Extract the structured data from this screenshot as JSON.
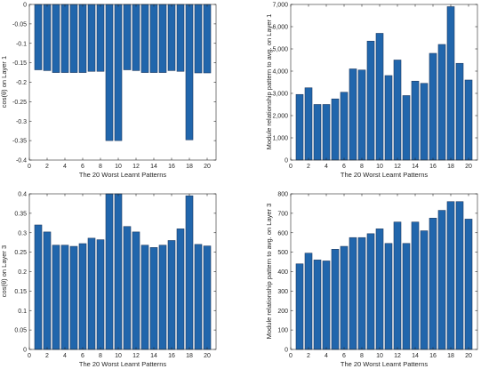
{
  "colors": {
    "bar_fill": "#2166ac",
    "bar_edge": "#1f3b63",
    "axis": "#262626",
    "background": "#ffffff"
  },
  "chart_data": [
    {
      "id": "top-left",
      "type": "bar",
      "title": "",
      "xlabel": "The 20 Worst Learnt Patterns",
      "ylabel": "cos(θ) on Layer 1",
      "x": [
        1,
        2,
        3,
        4,
        5,
        6,
        7,
        8,
        9,
        10,
        11,
        12,
        13,
        14,
        15,
        16,
        17,
        18,
        19,
        20
      ],
      "values": [
        -0.168,
        -0.17,
        -0.175,
        -0.175,
        -0.175,
        -0.175,
        -0.172,
        -0.172,
        -0.35,
        -0.35,
        -0.168,
        -0.17,
        -0.175,
        -0.175,
        -0.175,
        -0.17,
        -0.172,
        -0.348,
        -0.176,
        -0.176
      ],
      "xlim": [
        0,
        21
      ],
      "ylim": [
        -0.4,
        0
      ],
      "xticks": [
        0,
        2,
        4,
        6,
        8,
        10,
        12,
        14,
        16,
        18,
        20
      ],
      "yticks": [
        0,
        -0.05,
        -0.1,
        -0.15,
        -0.2,
        -0.25,
        -0.3,
        -0.35,
        -0.4
      ],
      "ytick_labels": [
        "0",
        "-0.05",
        "-0.1",
        "-0.15",
        "-0.2",
        "-0.25",
        "-0.3",
        "-0.35",
        "-0.4"
      ],
      "bar_base": 0
    },
    {
      "id": "top-right",
      "type": "bar",
      "title": "",
      "xlabel": "The 20 Worst Learnt Patterns",
      "ylabel": "Module relationship pattern to avg. on Layer 1",
      "x": [
        1,
        2,
        3,
        4,
        5,
        6,
        7,
        8,
        9,
        10,
        11,
        12,
        13,
        14,
        15,
        16,
        17,
        18,
        19,
        20
      ],
      "values": [
        2950,
        3250,
        2500,
        2500,
        2750,
        3050,
        4100,
        4050,
        5350,
        5700,
        3800,
        4500,
        2900,
        3550,
        3450,
        4800,
        5200,
        6900,
        4350,
        3600
      ],
      "xlim": [
        0,
        21
      ],
      "ylim": [
        0,
        7000
      ],
      "xticks": [
        0,
        2,
        4,
        6,
        8,
        10,
        12,
        14,
        16,
        18,
        20
      ],
      "yticks": [
        0,
        1000,
        2000,
        3000,
        4000,
        5000,
        6000,
        7000
      ],
      "ytick_labels": [
        "0",
        "1,000",
        "2,000",
        "3,000",
        "4,000",
        "5,000",
        "6,000",
        "7,000"
      ],
      "bar_base": 0
    },
    {
      "id": "bottom-left",
      "type": "bar",
      "title": "",
      "xlabel": "The 20 Worst Learnt Patterns",
      "ylabel": "cos(θ) on Layer 3",
      "x": [
        1,
        2,
        3,
        4,
        5,
        6,
        7,
        8,
        9,
        10,
        11,
        12,
        13,
        14,
        15,
        16,
        17,
        18,
        19,
        20
      ],
      "values": [
        0.32,
        0.302,
        0.268,
        0.268,
        0.265,
        0.272,
        0.286,
        0.282,
        0.4,
        0.4,
        0.316,
        0.302,
        0.268,
        0.262,
        0.268,
        0.28,
        0.31,
        0.395,
        0.27,
        0.266
      ],
      "xlim": [
        0,
        21
      ],
      "ylim": [
        0,
        0.4
      ],
      "xticks": [
        0,
        2,
        4,
        6,
        8,
        10,
        12,
        14,
        16,
        18,
        20
      ],
      "yticks": [
        0,
        0.05,
        0.1,
        0.15,
        0.2,
        0.25,
        0.3,
        0.35,
        0.4
      ],
      "ytick_labels": [
        "0",
        "0.05",
        "0.1",
        "0.15",
        "0.2",
        "0.25",
        "0.3",
        "0.35",
        "0.4"
      ],
      "bar_base": 0
    },
    {
      "id": "bottom-right",
      "type": "bar",
      "title": "",
      "xlabel": "The 20 Worst Learnt Patterns",
      "ylabel": "Module relationship pattern to avg. on Layer 3",
      "x": [
        1,
        2,
        3,
        4,
        5,
        6,
        7,
        8,
        9,
        10,
        11,
        12,
        13,
        14,
        15,
        16,
        17,
        18,
        19,
        20
      ],
      "values": [
        440,
        495,
        460,
        455,
        515,
        530,
        575,
        575,
        595,
        620,
        545,
        655,
        545,
        655,
        610,
        675,
        715,
        760,
        760,
        670
      ],
      "xlim": [
        0,
        21
      ],
      "ylim": [
        0,
        800
      ],
      "xticks": [
        0,
        2,
        4,
        6,
        8,
        10,
        12,
        14,
        16,
        18,
        20
      ],
      "yticks": [
        0,
        100,
        200,
        300,
        400,
        500,
        600,
        700,
        800
      ],
      "ytick_labels": [
        "0",
        "100",
        "200",
        "300",
        "400",
        "500",
        "600",
        "700",
        "800"
      ],
      "bar_base": 0
    }
  ]
}
